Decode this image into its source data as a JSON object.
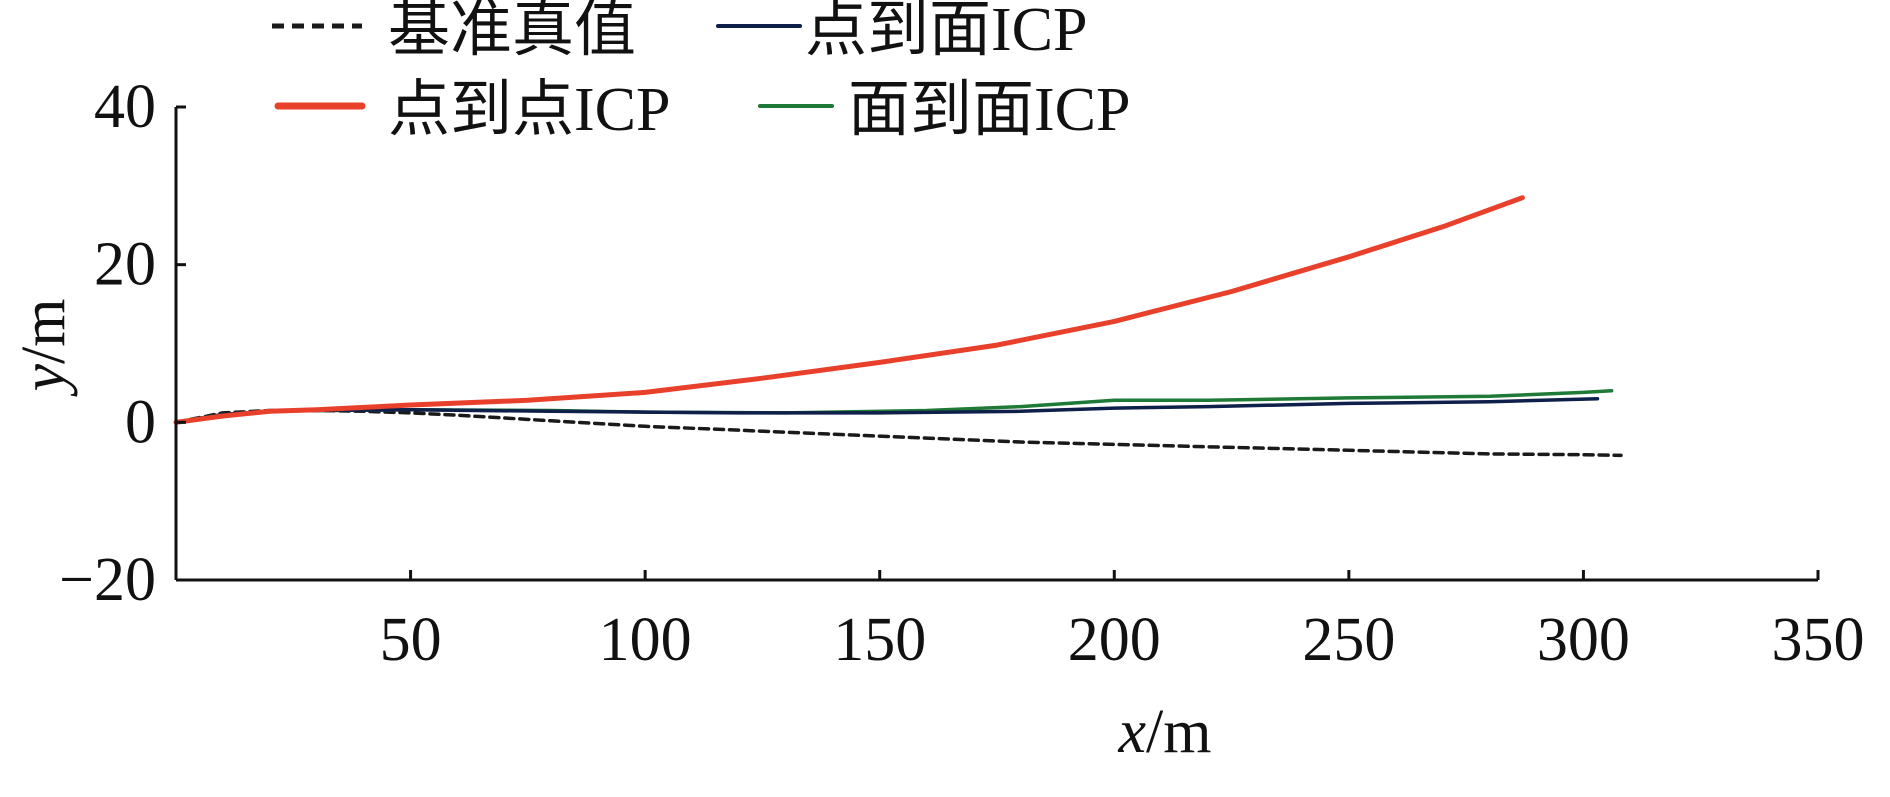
{
  "chart_data": {
    "type": "line",
    "xlabel": "x/m",
    "ylabel": "y/m",
    "xlim": [
      0,
      350
    ],
    "ylim": [
      -20,
      40
    ],
    "xticks": [
      50,
      100,
      150,
      200,
      250,
      300,
      350
    ],
    "xtick_labels": [
      "50",
      "100",
      "150",
      "200",
      "250",
      "300",
      "350"
    ],
    "yticks": [
      -20,
      0,
      20,
      40
    ],
    "ytick_labels": [
      "−20",
      "0",
      "20",
      "40"
    ],
    "grid": false,
    "legend_position": "top-left",
    "series": [
      {
        "name": "基准真值",
        "color": "#1a1a1a",
        "style": "dashed",
        "x": [
          0,
          10,
          20,
          30,
          40,
          50,
          60,
          80,
          100,
          120,
          140,
          160,
          180,
          200,
          220,
          240,
          260,
          280,
          300,
          308
        ],
        "y": [
          0,
          1.2,
          1.5,
          1.5,
          1.4,
          1.2,
          0.9,
          0.2,
          -0.5,
          -1.0,
          -1.5,
          -2.0,
          -2.5,
          -2.8,
          -3.1,
          -3.4,
          -3.7,
          -4.0,
          -4.1,
          -4.2
        ]
      },
      {
        "name": "点到面ICP",
        "color": "#0e1f4a",
        "style": "solid",
        "x": [
          0,
          10,
          20,
          30,
          50,
          80,
          100,
          120,
          150,
          180,
          200,
          220,
          250,
          280,
          303
        ],
        "y": [
          0,
          1.0,
          1.4,
          1.5,
          1.6,
          1.4,
          1.3,
          1.2,
          1.2,
          1.4,
          1.8,
          2.0,
          2.4,
          2.6,
          3.0
        ]
      },
      {
        "name": "点到点ICP",
        "color": "#e8402a",
        "style": "solid",
        "x": [
          0,
          10,
          20,
          30,
          40,
          50,
          75,
          100,
          125,
          150,
          175,
          200,
          225,
          250,
          270,
          287
        ],
        "y": [
          0,
          0.8,
          1.4,
          1.6,
          1.9,
          2.2,
          2.8,
          3.8,
          5.6,
          7.6,
          9.8,
          12.8,
          16.6,
          21.0,
          24.8,
          28.5
        ]
      },
      {
        "name": "面到面ICP",
        "color": "#1f7a38",
        "style": "solid",
        "x": [
          0,
          10,
          20,
          30,
          50,
          80,
          100,
          130,
          160,
          180,
          200,
          220,
          250,
          280,
          300,
          306
        ],
        "y": [
          0,
          1.0,
          1.4,
          1.5,
          1.6,
          1.5,
          1.3,
          1.2,
          1.5,
          2.0,
          2.8,
          2.8,
          3.1,
          3.3,
          3.8,
          4.0
        ]
      }
    ]
  }
}
